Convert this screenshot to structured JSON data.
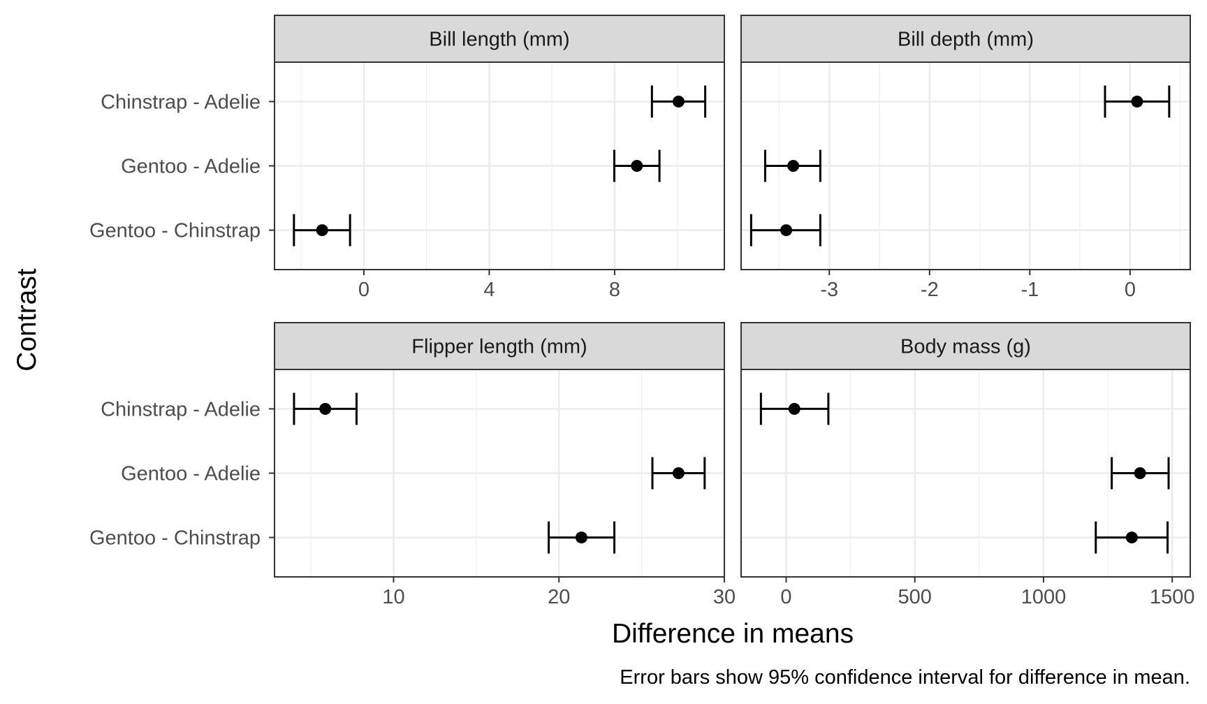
{
  "chart_data": {
    "type": "errorbar",
    "xlabel": "Difference in means",
    "ylabel": "Contrast",
    "caption": "Error bars show 95% confidence interval for difference in mean.",
    "categories": [
      "Chinstrap - Adelie",
      "Gentoo - Adelie",
      "Gentoo - Chinstrap"
    ],
    "grid": true,
    "panels": [
      {
        "title": "Bill length (mm)",
        "xlim": [
          -2.85,
          11.5
        ],
        "ticks": [
          0,
          4,
          8
        ],
        "tick_labels": [
          "0",
          "4",
          "8"
        ],
        "points": [
          {
            "category": "Chinstrap - Adelie",
            "estimate": 10.04,
            "lower": 9.19,
            "upper": 10.89
          },
          {
            "category": "Gentoo - Adelie",
            "estimate": 8.71,
            "lower": 7.99,
            "upper": 9.43
          },
          {
            "category": "Gentoo - Chinstrap",
            "estimate": -1.33,
            "lower": -2.23,
            "upper": -0.44
          }
        ]
      },
      {
        "title": "Bill depth (mm)",
        "xlim": [
          -3.88,
          0.6
        ],
        "ticks": [
          -3,
          -2,
          -1,
          0
        ],
        "tick_labels": [
          "-3",
          "-2",
          "-1",
          "0"
        ],
        "points": [
          {
            "category": "Chinstrap - Adelie",
            "estimate": 0.07,
            "lower": -0.25,
            "upper": 0.39
          },
          {
            "category": "Gentoo - Adelie",
            "estimate": -3.36,
            "lower": -3.64,
            "upper": -3.09
          },
          {
            "category": "Gentoo - Chinstrap",
            "estimate": -3.43,
            "lower": -3.78,
            "upper": -3.09
          }
        ]
      },
      {
        "title": "Flipper length (mm)",
        "xlim": [
          2.8,
          30
        ],
        "ticks": [
          10,
          20,
          30
        ],
        "tick_labels": [
          "10",
          "20",
          "30"
        ],
        "points": [
          {
            "category": "Chinstrap - Adelie",
            "estimate": 5.87,
            "lower": 3.98,
            "upper": 7.76
          },
          {
            "category": "Gentoo - Adelie",
            "estimate": 27.23,
            "lower": 25.65,
            "upper": 28.81
          },
          {
            "category": "Gentoo - Chinstrap",
            "estimate": 21.36,
            "lower": 19.38,
            "upper": 23.35
          }
        ]
      },
      {
        "title": "Body mass (g)",
        "xlim": [
          -175,
          1570
        ],
        "ticks": [
          0,
          500,
          1000,
          1500
        ],
        "tick_labels": [
          "0",
          "500",
          "1000",
          "1500"
        ],
        "points": [
          {
            "category": "Chinstrap - Adelie",
            "estimate": 32,
            "lower": -98,
            "upper": 164
          },
          {
            "category": "Gentoo - Adelie",
            "estimate": 1375,
            "lower": 1265,
            "upper": 1486
          },
          {
            "category": "Gentoo - Chinstrap",
            "estimate": 1343,
            "lower": 1203,
            "upper": 1482
          }
        ]
      }
    ]
  }
}
